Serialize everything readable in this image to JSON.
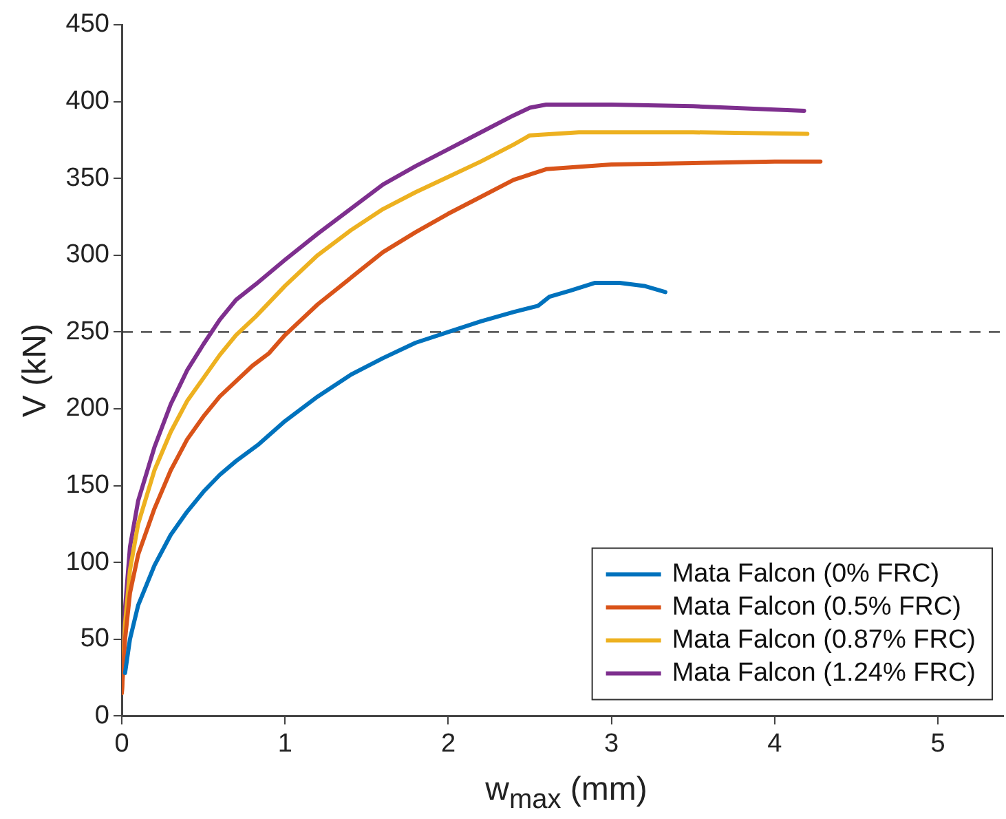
{
  "chart_data": {
    "type": "line",
    "xlabel": "w$_{max}$ (mm)",
    "ylabel": "V (kN)",
    "xlim": [
      0,
      5.4
    ],
    "xticks": [
      0,
      1,
      2,
      3,
      4,
      5
    ],
    "ylim": [
      0,
      450
    ],
    "yticks": [
      0,
      50,
      100,
      150,
      200,
      250,
      300,
      350,
      400,
      450
    ],
    "grid": false,
    "legend": "bottom right",
    "marker": "none",
    "line_style": "solid",
    "ref_lines": [
      {
        "axis": "y",
        "value": 250,
        "color": "#333333",
        "line_style": "dashed"
      }
    ],
    "series": [
      {
        "name": "Mata Falcon (0% FRC)",
        "color": "#0072bd",
        "x": [
          0.02,
          0.05,
          0.1,
          0.2,
          0.3,
          0.4,
          0.5,
          0.6,
          0.7,
          0.84,
          1.0,
          1.2,
          1.4,
          1.6,
          1.8,
          2.0,
          2.2,
          2.4,
          2.55,
          2.62,
          2.75,
          2.9,
          3.05,
          3.2,
          3.33
        ],
        "values": [
          28,
          50,
          72,
          98,
          118,
          133,
          146,
          157,
          166,
          177,
          192,
          208,
          222,
          233,
          243,
          250,
          257,
          263,
          267,
          273,
          277,
          282,
          282,
          280,
          276
        ]
      },
      {
        "name": "Mata Falcon (0.5% FRC)",
        "color": "#d95319",
        "x": [
          0,
          0.02,
          0.05,
          0.1,
          0.2,
          0.3,
          0.4,
          0.5,
          0.6,
          0.8,
          0.9,
          1.0,
          1.2,
          1.4,
          1.6,
          1.8,
          2.0,
          2.2,
          2.4,
          2.6,
          3.0,
          3.5,
          4.0,
          4.28
        ],
        "values": [
          15,
          50,
          80,
          105,
          135,
          160,
          180,
          195,
          208,
          228,
          236,
          248,
          268,
          285,
          302,
          315,
          327,
          338,
          349,
          356,
          359,
          360,
          361,
          361
        ]
      },
      {
        "name": "Mata Falcon (0.87% FRC)",
        "color": "#edb120",
        "x": [
          0,
          0.02,
          0.05,
          0.1,
          0.2,
          0.3,
          0.4,
          0.5,
          0.6,
          0.7,
          0.82,
          1.0,
          1.2,
          1.4,
          1.6,
          1.8,
          2.0,
          2.2,
          2.4,
          2.5,
          2.8,
          3.5,
          4.2
        ],
        "values": [
          15,
          60,
          95,
          125,
          160,
          185,
          205,
          220,
          235,
          248,
          260,
          280,
          300,
          316,
          330,
          341,
          351,
          361,
          372,
          378,
          380,
          380,
          379
        ]
      },
      {
        "name": "Mata Falcon (1.24% FRC)",
        "color": "#7e2f8e",
        "x": [
          0,
          0.02,
          0.05,
          0.1,
          0.2,
          0.3,
          0.4,
          0.5,
          0.6,
          0.7,
          0.82,
          1.0,
          1.2,
          1.4,
          1.6,
          1.8,
          2.0,
          2.2,
          2.4,
          2.5,
          2.6,
          3.0,
          3.5,
          4.18
        ],
        "values": [
          15,
          70,
          110,
          140,
          175,
          203,
          225,
          242,
          258,
          271,
          281,
          297,
          314,
          330,
          346,
          358,
          369,
          380,
          391,
          396,
          398,
          398,
          397,
          394
        ]
      }
    ]
  }
}
